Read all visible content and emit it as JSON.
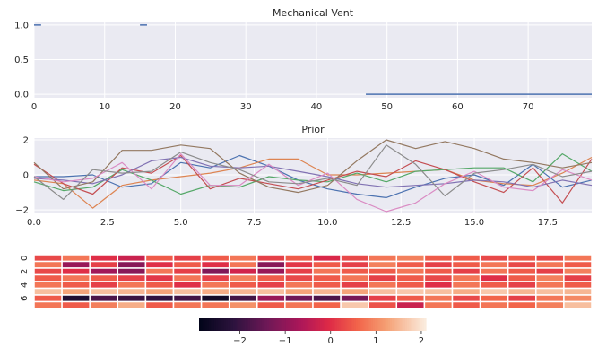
{
  "chart_data": [
    {
      "type": "step",
      "title": "Mechanical Vent",
      "xlim": [
        0,
        79
      ],
      "ylim": [
        -0.05,
        1.05
      ],
      "xticks": [
        0,
        10,
        20,
        30,
        40,
        50,
        60,
        70
      ],
      "yticks": [
        0.0,
        0.5,
        1.0
      ],
      "ytick_labels": [
        "0.0",
        "0.5",
        "1.0"
      ],
      "grid": true,
      "series": [
        {
          "color": "#4c72b0",
          "segments": [
            {
              "x": [
                0,
                1
              ],
              "y": 1.0
            },
            {
              "x": [
                15,
                16
              ],
              "y": 1.0
            },
            {
              "x": [
                47,
                79
              ],
              "y": 0.0
            }
          ]
        }
      ]
    },
    {
      "type": "line",
      "title": "Prior",
      "xlim": [
        0,
        19
      ],
      "ylim": [
        -2.2,
        2.1
      ],
      "xticks": [
        0,
        2.5,
        5,
        7.5,
        10,
        12.5,
        15,
        17.5
      ],
      "xtick_labels": [
        "0.0",
        "2.5",
        "5.0",
        "7.5",
        "10.0",
        "12.5",
        "15.0",
        "17.5"
      ],
      "yticks": [
        -2,
        0,
        2
      ],
      "ytick_labels": [
        "−2",
        "0",
        "2"
      ],
      "grid": true,
      "x": [
        0,
        1,
        2,
        3,
        4,
        5,
        6,
        7,
        8,
        9,
        10,
        11,
        12,
        13,
        14,
        15,
        16,
        17,
        18,
        19
      ],
      "series": [
        {
          "color": "#4c72b0",
          "values": [
            -0.1,
            -0.1,
            0.0,
            -0.7,
            -0.5,
            0.7,
            0.4,
            1.1,
            0.5,
            -0.3,
            -0.8,
            -1.1,
            -1.3,
            -0.7,
            -0.2,
            0.0,
            -0.6,
            0.6,
            -0.7,
            -0.3
          ]
        },
        {
          "color": "#dd8452",
          "values": [
            -0.3,
            -0.5,
            -1.9,
            -0.6,
            -0.3,
            -0.1,
            0.1,
            0.4,
            0.9,
            0.9,
            0.0,
            0.0,
            0.1,
            0.2,
            0.3,
            -0.3,
            -0.5,
            -0.6,
            0.1,
            1.0
          ]
        },
        {
          "color": "#55a868",
          "values": [
            -0.4,
            -0.9,
            -0.7,
            0.3,
            -0.3,
            -1.1,
            -0.6,
            -0.7,
            -0.1,
            -0.3,
            -0.4,
            0.1,
            -0.4,
            0.2,
            0.3,
            0.4,
            0.4,
            -0.4,
            1.2,
            0.2
          ]
        },
        {
          "color": "#c44e52",
          "values": [
            0.6,
            -0.5,
            -1.1,
            0.4,
            0.1,
            1.1,
            -0.8,
            -0.2,
            -0.5,
            -0.8,
            -0.3,
            0.2,
            -0.1,
            0.8,
            0.3,
            -0.4,
            -1.0,
            0.4,
            -1.6,
            0.9
          ]
        },
        {
          "color": "#8172b3",
          "values": [
            -0.2,
            -0.3,
            -0.5,
            0.0,
            0.8,
            1.0,
            0.5,
            0.4,
            0.5,
            0.2,
            -0.1,
            -0.5,
            -0.7,
            -0.6,
            -0.5,
            -0.3,
            -0.4,
            -0.7,
            -0.3,
            -0.6
          ]
        },
        {
          "color": "#937860",
          "values": [
            0.7,
            -0.8,
            -0.4,
            1.4,
            1.4,
            1.7,
            1.5,
            0.1,
            -0.7,
            -1.0,
            -0.6,
            0.8,
            2.0,
            1.5,
            1.9,
            1.5,
            0.9,
            0.7,
            0.4,
            0.7
          ]
        },
        {
          "color": "#da8bc3",
          "values": [
            -0.1,
            -0.4,
            -0.2,
            0.7,
            -0.8,
            1.2,
            -0.6,
            -0.6,
            0.6,
            -0.6,
            0.1,
            -1.4,
            -2.1,
            -1.6,
            -0.5,
            0.2,
            -0.7,
            -0.9,
            0.3,
            -0.3
          ]
        },
        {
          "color": "#8c8c8c",
          "values": [
            -0.1,
            -1.4,
            0.3,
            0.1,
            0.2,
            1.3,
            0.7,
            0.3,
            -0.4,
            -0.5,
            -0.2,
            -0.6,
            1.7,
            0.6,
            -1.2,
            0.1,
            0.3,
            0.6,
            -0.1,
            0.2
          ]
        }
      ]
    },
    {
      "type": "heatmap",
      "ytick_labels": [
        "0",
        "2",
        "4",
        "6"
      ],
      "colorbar_ticks": [
        -2,
        -1,
        0,
        1,
        2
      ],
      "colorbar_tick_labels": [
        "−2",
        "−1",
        "0",
        "1",
        "2"
      ],
      "vmin": -2.9,
      "vmax": 2.1,
      "values": [
        [
          0.3,
          0.8,
          0.0,
          -0.3,
          0.5,
          0.2,
          0.5,
          0.8,
          0.2,
          0.5,
          -0.1,
          0.3,
          0.8,
          0.9,
          0.5,
          0.5,
          0.3,
          0.5,
          0.3,
          0.8
        ],
        [
          0.8,
          -0.9,
          0.2,
          -1.1,
          0.0,
          0.5,
          0.0,
          0.8,
          -1.1,
          0.1,
          0.5,
          0.2,
          0.9,
          0.5,
          0.2,
          0.5,
          0.8,
          0.3,
          0.8,
          0.5
        ],
        [
          0.3,
          0.0,
          -0.8,
          -1.1,
          0.8,
          0.2,
          -1.2,
          -0.2,
          -0.9,
          0.2,
          0.8,
          0.5,
          0.5,
          0.8,
          0.5,
          0.2,
          0.8,
          0.5,
          0.2,
          0.9
        ],
        [
          0.5,
          0.8,
          0.5,
          0.2,
          0.1,
          0.8,
          0.2,
          0.9,
          0.5,
          0.3,
          0.5,
          0.8,
          0.2,
          0.5,
          0.3,
          0.8,
          0.0,
          0.5,
          0.9,
          0.2
        ],
        [
          0.8,
          0.5,
          0.2,
          0.8,
          0.5,
          0.0,
          0.8,
          0.5,
          0.2,
          0.8,
          0.5,
          0.2,
          0.8,
          0.5,
          0.0,
          0.8,
          0.5,
          0.2,
          0.8,
          0.5
        ],
        [
          1.6,
          1.3,
          1.6,
          1.5,
          1.3,
          1.6,
          1.4,
          1.5,
          1.6,
          1.3,
          1.5,
          1.3,
          1.6,
          1.7,
          1.6,
          1.4,
          1.7,
          1.5,
          1.6,
          1.5
        ],
        [
          0.5,
          -2.4,
          -1.8,
          -2.0,
          -2.1,
          -1.9,
          -2.6,
          -1.9,
          -0.9,
          -1.4,
          -1.8,
          -1.3,
          0.2,
          0.5,
          0.8,
          0.3,
          0.6,
          0.2,
          0.8,
          1.0
        ],
        [
          0.8,
          0.5,
          0.9,
          1.4,
          0.5,
          0.8,
          0.8,
          1.1,
          0.5,
          0.8,
          0.6,
          1.7,
          0.4,
          -0.3,
          0.8,
          0.5,
          0.8,
          0.6,
          0.9,
          1.6
        ]
      ]
    }
  ]
}
